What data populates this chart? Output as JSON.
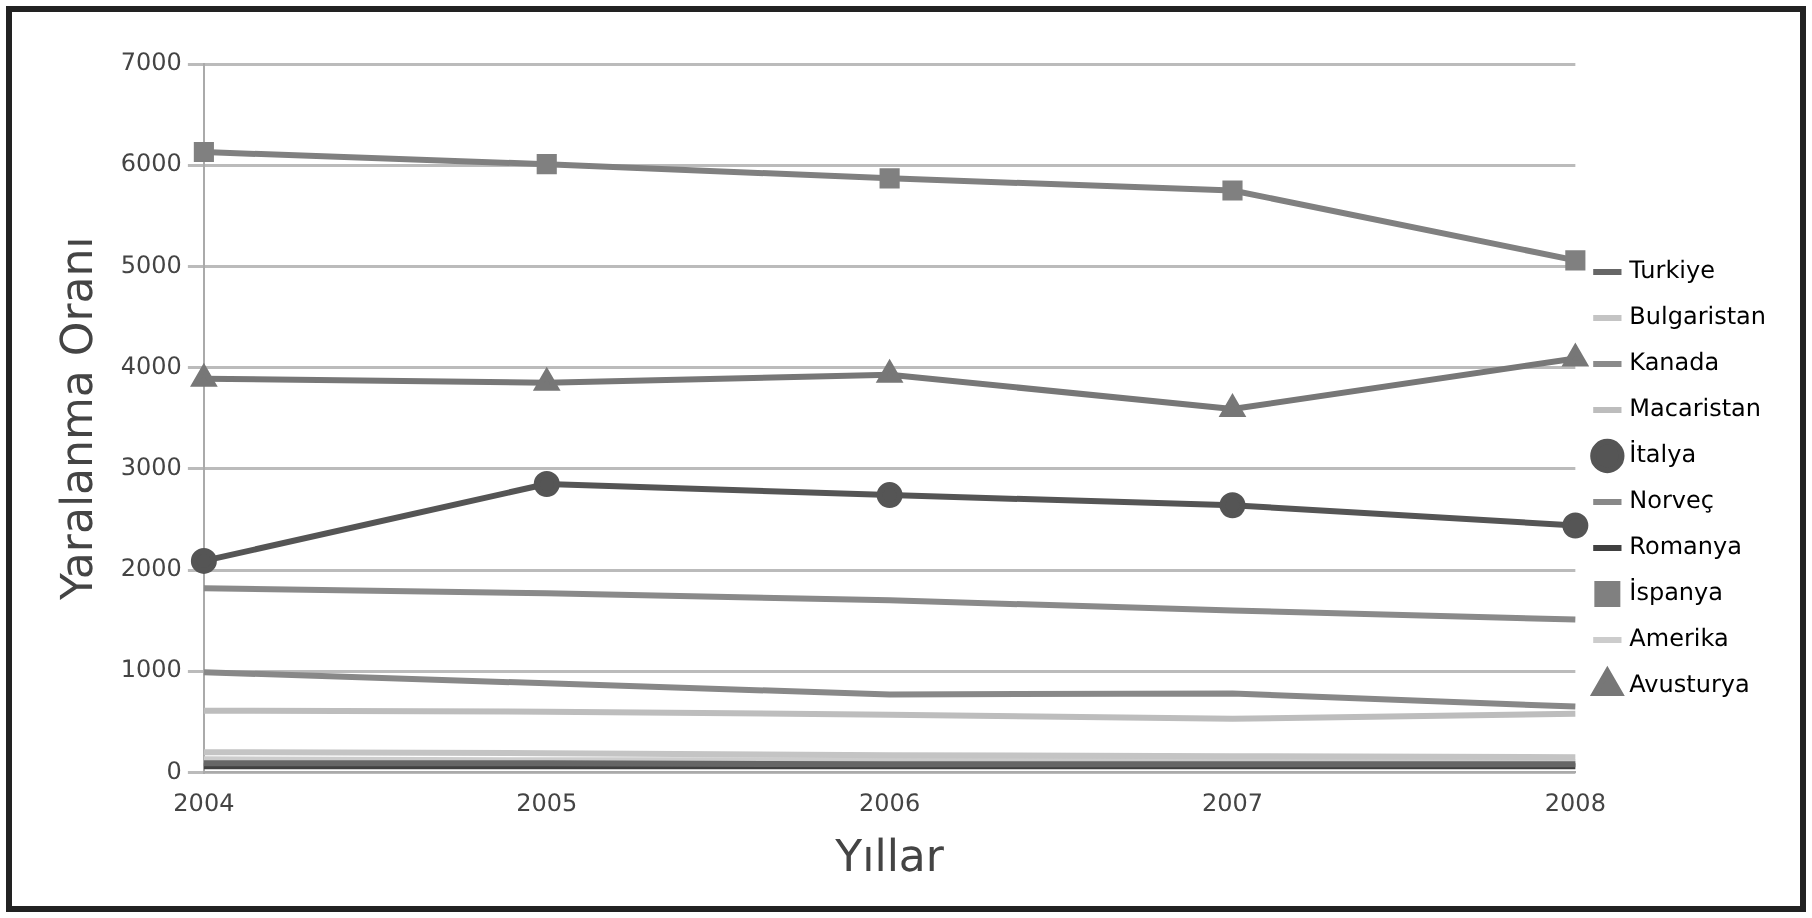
{
  "chart_data": {
    "type": "line",
    "xlabel": "Yıllar",
    "ylabel": "Yaralanma Oranı",
    "categories": [
      "2004",
      "2005",
      "2006",
      "2007",
      "2008"
    ],
    "ylim": [
      0,
      7000
    ],
    "yticks": [
      0,
      1000,
      2000,
      3000,
      4000,
      5000,
      6000,
      7000
    ],
    "grid": "y",
    "legend": "right",
    "series": [
      {
        "name": "Turkiye",
        "color": "#666666",
        "marker": "none",
        "values": [
          90,
          90,
          80,
          80,
          80
        ]
      },
      {
        "name": "Bulgaristan",
        "color": "#c4c4c4",
        "marker": "none",
        "values": [
          200,
          190,
          170,
          160,
          150
        ]
      },
      {
        "name": "Kanada",
        "color": "#8a8a8a",
        "marker": "none",
        "values": [
          1820,
          1770,
          1700,
          1600,
          1510
        ]
      },
      {
        "name": "Macaristan",
        "color": "#bdbdbd",
        "marker": "none",
        "values": [
          610,
          600,
          570,
          530,
          580
        ]
      },
      {
        "name": "İtalya",
        "color": "#555555",
        "marker": "circle",
        "values": [
          2090,
          2850,
          2740,
          2640,
          2440
        ]
      },
      {
        "name": "Norveç",
        "color": "#888888",
        "marker": "none",
        "values": [
          990,
          880,
          770,
          780,
          650
        ]
      },
      {
        "name": "Romanya",
        "color": "#404040",
        "marker": "none",
        "values": [
          60,
          60,
          60,
          60,
          60
        ]
      },
      {
        "name": "İspanya",
        "color": "#808080",
        "marker": "square",
        "values": [
          6130,
          6010,
          5870,
          5750,
          5060
        ]
      },
      {
        "name": "Amerika",
        "color": "#cccccc",
        "marker": "none",
        "values": [
          130,
          120,
          120,
          110,
          100
        ]
      },
      {
        "name": "Avusturya",
        "color": "#777777",
        "marker": "triangle",
        "values": [
          3890,
          3850,
          3930,
          3590,
          4090
        ]
      }
    ]
  }
}
